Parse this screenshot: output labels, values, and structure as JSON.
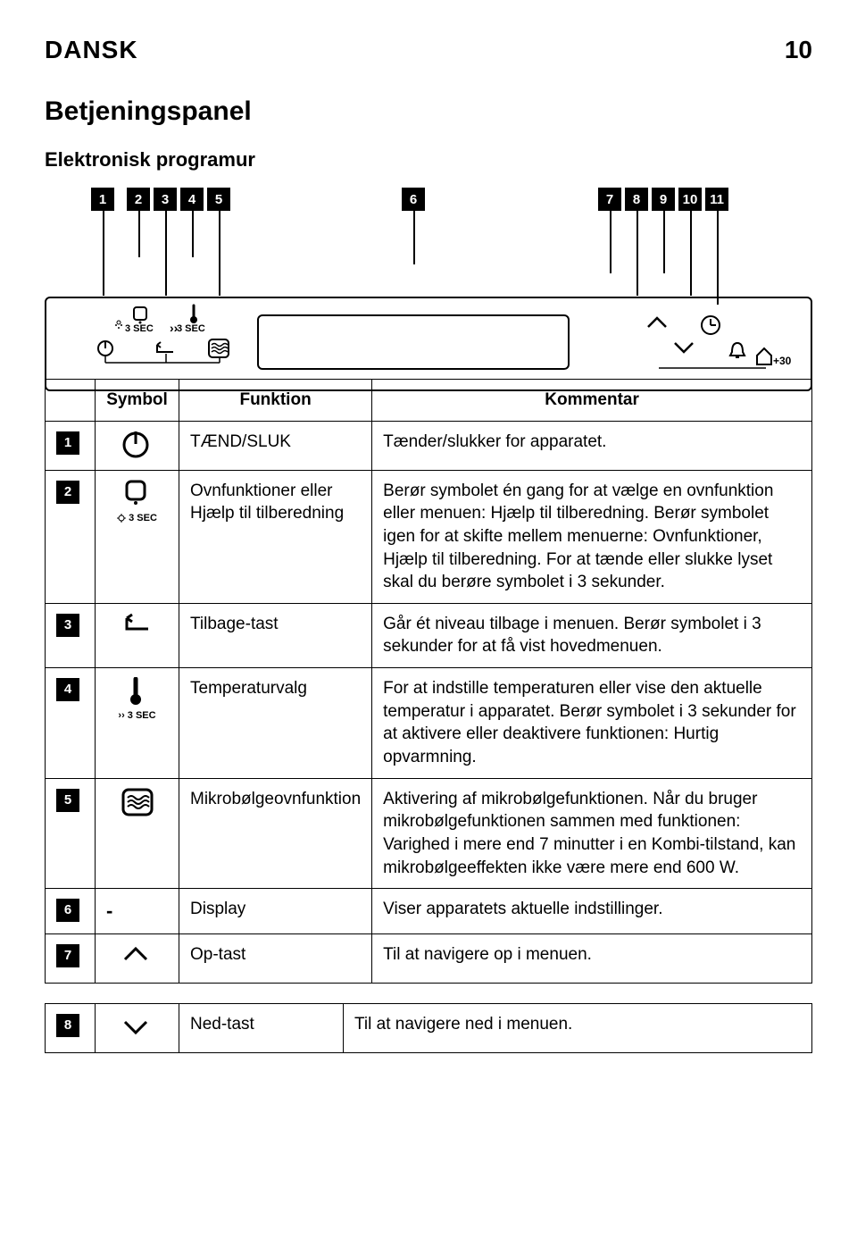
{
  "header": {
    "language": "DANSK",
    "page": "10"
  },
  "section": {
    "title": "Betjeningspanel",
    "subtitle": "Elektronisk programur"
  },
  "diagram": {
    "callouts": [
      "1",
      "2",
      "3",
      "4",
      "5",
      "6",
      "7",
      "8",
      "9",
      "10",
      "11"
    ],
    "sec_label_a": "3 SEC",
    "sec_label_b": "3 SEC",
    "plus30": "+30"
  },
  "table": {
    "headers": {
      "symbol": "Symbol",
      "function": "Funktion",
      "comment": "Kommentar"
    },
    "rows": [
      {
        "n": "1",
        "symbol": "power",
        "function": "TÆND/SLUK",
        "comment": "Tænder/slukker for apparatet."
      },
      {
        "n": "2",
        "symbol": "light",
        "sym_label": "3 SEC",
        "function": "Ovnfunktioner eller Hjælp til tilberedning",
        "comment": "Berør symbolet én gang for at vælge en ovnfunktion eller menuen: Hjælp til tilberedning. Berør symbolet igen for at skifte mellem menuerne: Ovnfunktioner, Hjælp til tilberedning. For at tænde eller slukke lyset skal du berøre symbolet i 3 sekunder."
      },
      {
        "n": "3",
        "symbol": "back",
        "function": "Tilbage-tast",
        "comment": "Går ét niveau tilbage i menuen. Berør symbolet i 3 sekunder for at få vist hovedmenuen."
      },
      {
        "n": "4",
        "symbol": "therm",
        "sym_label": "3 SEC",
        "function": "Temperaturvalg",
        "comment": "For at indstille temperaturen eller vise den aktuelle temperatur i apparatet. Berør symbolet i 3 sekunder for at aktivere eller deaktivere funktionen: Hurtig opvarmning."
      },
      {
        "n": "5",
        "symbol": "microwave",
        "function": "Mikrobølgeovnfunktion",
        "comment": "Aktivering af mikrobølgefunktionen. Når du bruger mikrobølgefunktionen sammen med funktionen: Varighed i mere end 7 minutter i en Kombi-tilstand, kan mikrobølgeeffekten ikke være mere end 600 W."
      },
      {
        "n": "6",
        "symbol": "-",
        "function": "Display",
        "comment": "Viser apparatets aktuelle indstillinger."
      },
      {
        "n": "7",
        "symbol": "up",
        "function": "Op-tast",
        "comment": "Til at navigere op i menuen."
      }
    ],
    "bottom_row": {
      "n": "8",
      "symbol": "down",
      "function": "Ned-tast",
      "comment": "Til at navigere ned i menuen."
    }
  }
}
